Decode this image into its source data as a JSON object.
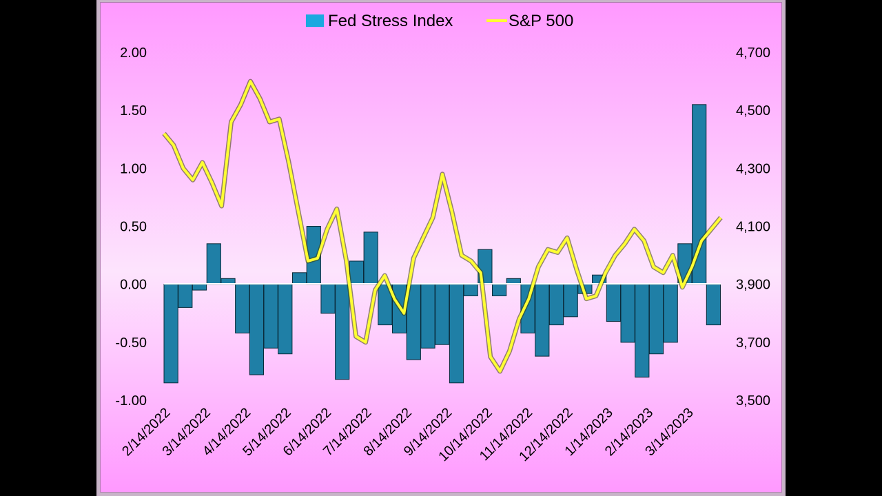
{
  "chart_data": {
    "type": "bar",
    "title": "",
    "legend": [
      {
        "name": "Fed Stress Index",
        "color": "#1aa8e0",
        "kind": "bar"
      },
      {
        "name": "S&P 500",
        "color": "#ffff33",
        "kind": "line"
      }
    ],
    "legend_position": "top-center",
    "y_left": {
      "ticks": [
        "2.00",
        "1.50",
        "1.00",
        "0.50",
        "0.00",
        "-0.50",
        "-1.00"
      ],
      "ylim": [
        -1.0,
        2.0
      ]
    },
    "y_right": {
      "ticks": [
        "4,700",
        "4,500",
        "4,300",
        "4,100",
        "3,900",
        "3,700",
        "3,500"
      ],
      "ylim": [
        3500,
        4700
      ]
    },
    "x_ticks": [
      "2/14/2022",
      "3/14/2022",
      "4/14/2022",
      "5/14/2022",
      "6/14/2022",
      "7/14/2022",
      "8/14/2022",
      "9/14/2022",
      "10/14/2022",
      "11/14/2022",
      "12/14/2022",
      "1/14/2023",
      "2/14/2023",
      "3/14/2023"
    ],
    "series": [
      {
        "name": "Fed Stress Index",
        "type": "bar",
        "axis": "left",
        "values": [
          -0.85,
          -0.2,
          -0.05,
          0.35,
          0.05,
          -0.42,
          -0.78,
          -0.55,
          -0.6,
          0.1,
          0.5,
          -0.25,
          -0.82,
          0.2,
          0.45,
          -0.35,
          -0.42,
          -0.65,
          -0.55,
          -0.52,
          -0.85,
          -0.1,
          0.3,
          -0.1,
          0.05,
          -0.42,
          -0.62,
          -0.35,
          -0.28,
          -0.08,
          0.08,
          -0.32,
          -0.5,
          -0.8,
          -0.6,
          -0.5,
          0.35,
          1.55,
          -0.35
        ]
      },
      {
        "name": "S&P 500",
        "type": "line",
        "axis": "right",
        "values": [
          4420,
          4380,
          4300,
          4260,
          4320,
          4250,
          4170,
          4460,
          4520,
          4600,
          4540,
          4460,
          4470,
          4320,
          4150,
          3980,
          3990,
          4090,
          4160,
          3980,
          3720,
          3700,
          3880,
          3930,
          3850,
          3800,
          3990,
          4060,
          4130,
          4280,
          4150,
          4000,
          3980,
          3940,
          3650,
          3600,
          3670,
          3780,
          3850,
          3960,
          4020,
          4010,
          4060,
          3950,
          3850,
          3860,
          3940,
          4000,
          4040,
          4090,
          4050,
          3960,
          3940,
          4000,
          3890,
          3960,
          4050,
          4090,
          4130
        ]
      }
    ]
  }
}
